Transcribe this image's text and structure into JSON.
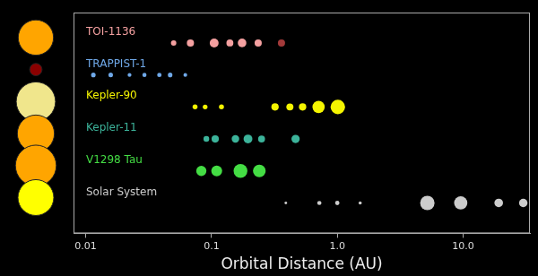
{
  "chart_data": {
    "type": "scatter",
    "x_label": "Orbital Distance (AU)",
    "log": "x",
    "xlim": [
      0.008,
      34
    ],
    "xticks": [
      0.01,
      0.1,
      {
        "value": 1,
        "label": "1.0"
      },
      {
        "value": 10,
        "label": "10.0"
      }
    ],
    "tick_labels": "x",
    "grid": false,
    "series": [
      {
        "name": "TOI-1136",
        "color": "#f4a0a0",
        "colors": [
          "#f4a0a0",
          "#f4a0a0",
          "#f4a0a0",
          "#f4a0a0",
          "#f4a0a0",
          "#f4a0a0",
          "#a33a3a"
        ],
        "x": [
          0.05,
          0.068,
          0.105,
          0.14,
          0.175,
          0.235,
          0.36
        ],
        "planet_radius": [
          1.6,
          2.8,
          4.3,
          2.6,
          4.0,
          2.8,
          2.8
        ],
        "star_color": "#ffa500",
        "star_radius": 0.97
      },
      {
        "name": "TRAPPIST-1",
        "color": "#6fa8e8",
        "x": [
          0.0115,
          0.0158,
          0.0223,
          0.0293,
          0.0385,
          0.0469,
          0.0619
        ],
        "planet_radius": [
          1.12,
          1.1,
          0.79,
          0.92,
          1.05,
          1.13,
          0.76
        ],
        "star_color": "#8b0000",
        "star_radius": 0.12
      },
      {
        "name": "Kepler-90",
        "color": "#f5f500",
        "x": [
          0.074,
          0.089,
          0.12,
          0.32,
          0.42,
          0.53,
          0.71,
          1.01
        ],
        "planet_radius": [
          1.3,
          1.2,
          1.3,
          2.9,
          2.7,
          2.9,
          8.1,
          11.3
        ],
        "star_color": "#f0e68c",
        "star_radius": 1.2
      },
      {
        "name": "Kepler-11",
        "color": "#3cb39a",
        "x": [
          0.091,
          0.107,
          0.155,
          0.195,
          0.25,
          0.466
        ],
        "planet_radius": [
          1.8,
          2.9,
          3.1,
          4.2,
          2.6,
          3.7
        ],
        "star_color": "#ffa500",
        "star_radius": 1.07
      },
      {
        "name": "V1298 Tau",
        "color": "#44dd44",
        "x": [
          0.083,
          0.11,
          0.17,
          0.24
        ],
        "planet_radius": [
          5.6,
          6.4,
          10.3,
          8.7
        ],
        "star_color": "#ffa500",
        "star_radius": 1.3
      },
      {
        "name": "Solar System",
        "color": "#cccccc",
        "x": [
          0.39,
          0.72,
          1.0,
          1.52,
          5.2,
          9.58,
          19.2,
          30.1
        ],
        "planet_radius": [
          0.38,
          0.95,
          1.0,
          0.53,
          11.2,
          9.45,
          4.01,
          3.88
        ],
        "star_color": "#ffff00",
        "star_radius": 1.0
      }
    ]
  }
}
